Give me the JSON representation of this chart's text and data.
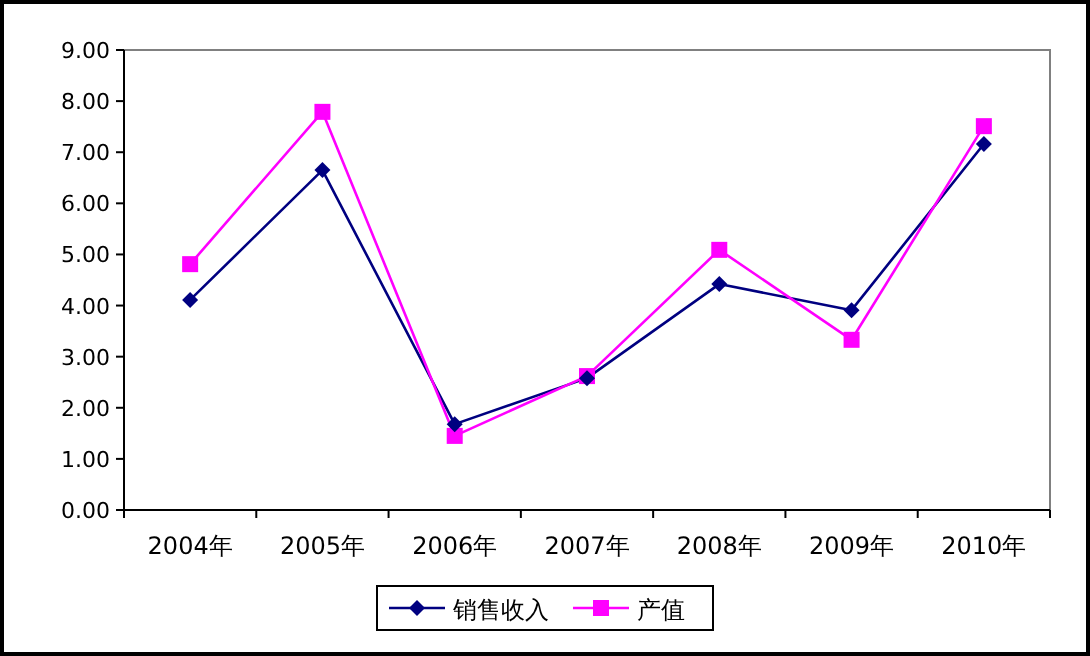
{
  "chart_data": {
    "type": "line",
    "categories": [
      "2004年",
      "2005年",
      "2006年",
      "2007年",
      "2008年",
      "2009年",
      "2010年"
    ],
    "series": [
      {
        "name": "销售收入",
        "color": "#000080",
        "marker": "diamond",
        "values": [
          4.11,
          6.65,
          1.68,
          2.58,
          4.42,
          3.91,
          7.16
        ]
      },
      {
        "name": "产值",
        "color": "#ff00ff",
        "marker": "square",
        "values": [
          4.81,
          7.79,
          1.45,
          2.62,
          5.09,
          3.33,
          7.51
        ]
      }
    ],
    "ylim": [
      0,
      9
    ],
    "yticks": [
      {
        "value": 0,
        "label": "0.00"
      },
      {
        "value": 1,
        "label": "1.00"
      },
      {
        "value": 2,
        "label": "2.00"
      },
      {
        "value": 3,
        "label": "3.00"
      },
      {
        "value": 4,
        "label": "4.00"
      },
      {
        "value": 5,
        "label": "5.00"
      },
      {
        "value": 6,
        "label": "6.00"
      },
      {
        "value": 7,
        "label": "7.00"
      },
      {
        "value": 8,
        "label": "8.00"
      },
      {
        "value": 9,
        "label": "9.00"
      }
    ],
    "legend": "bottom",
    "line_style": "solid"
  }
}
